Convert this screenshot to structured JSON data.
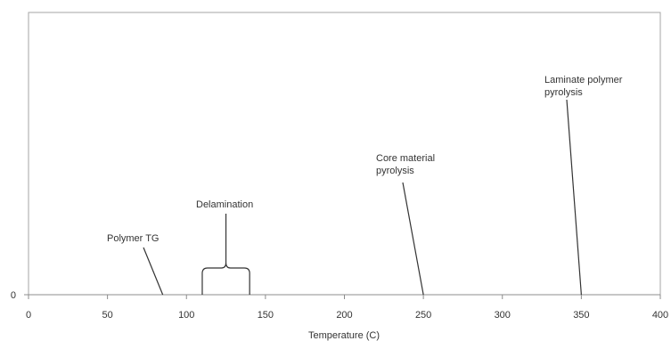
{
  "chart_data": {
    "type": "line",
    "title": "",
    "xlabel": "Temperature (C)",
    "ylabel": "",
    "xlim": [
      0,
      400
    ],
    "ylim": [
      0,
      1
    ],
    "grid": false,
    "x_ticks": [
      "0",
      "50",
      "100",
      "150",
      "200",
      "250",
      "300",
      "350",
      "400"
    ],
    "y_ticks": [
      "0"
    ],
    "annotations": [
      {
        "id": "polymer-tg",
        "lines": [
          "Polymer TG"
        ],
        "x": 85
      },
      {
        "id": "delamination",
        "lines": [
          "Delamination"
        ],
        "x_range": [
          110,
          140
        ]
      },
      {
        "id": "core-pyrolysis",
        "lines": [
          "Core material",
          "pyrolysis"
        ],
        "x": 250
      },
      {
        "id": "laminate-pyrolysis",
        "lines": [
          "Laminate polymer",
          "pyrolysis"
        ],
        "x": 350
      }
    ]
  }
}
